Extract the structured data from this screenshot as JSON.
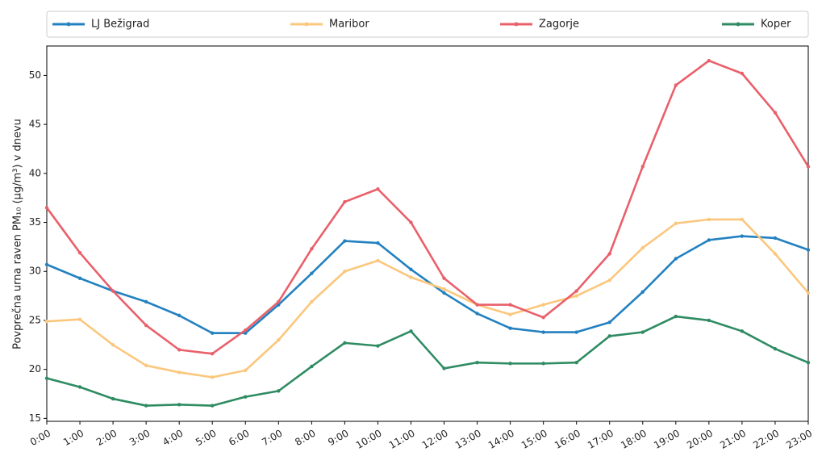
{
  "chart_data": {
    "type": "line",
    "y_label": "Povprečna urna raven PM₁₀ (µg/m³) v dnevu",
    "categories": [
      "0:00",
      "1:00",
      "2:00",
      "3:00",
      "4:00",
      "5:00",
      "6:00",
      "7:00",
      "8:00",
      "9:00",
      "10:00",
      "11:00",
      "12:00",
      "13:00",
      "14:00",
      "15:00",
      "16:00",
      "17:00",
      "18:00",
      "19:00",
      "20:00",
      "21:00",
      "22:00",
      "23:00"
    ],
    "series": [
      {
        "name": "LJ Bežigrad",
        "color": "#2381c0",
        "values": [
          30.7,
          29.3,
          28.0,
          26.9,
          25.5,
          23.7,
          23.7,
          26.6,
          29.8,
          33.1,
          32.9,
          30.2,
          27.8,
          25.7,
          24.2,
          23.8,
          23.8,
          24.8,
          27.9,
          31.3,
          33.2,
          33.6,
          33.4,
          32.2
        ]
      },
      {
        "name": "Maribor",
        "color": "#fbc77c",
        "values": [
          24.9,
          25.1,
          22.5,
          20.4,
          19.7,
          19.2,
          19.9,
          23.0,
          26.9,
          30.0,
          31.1,
          29.4,
          28.2,
          26.6,
          25.6,
          26.6,
          27.5,
          29.1,
          32.4,
          34.9,
          35.3,
          35.3,
          31.8,
          27.8
        ]
      },
      {
        "name": "Zagorje",
        "color": "#e9606a",
        "values": [
          36.5,
          31.9,
          28.0,
          24.5,
          22.0,
          21.6,
          24.0,
          26.9,
          32.3,
          37.1,
          38.4,
          35.0,
          29.3,
          26.6,
          26.6,
          25.3,
          28.0,
          31.8,
          40.7,
          49.0,
          51.5,
          50.2,
          46.2,
          40.7
        ]
      },
      {
        "name": "Koper",
        "color": "#2e8b62",
        "values": [
          19.1,
          18.2,
          17.0,
          16.3,
          16.4,
          16.3,
          17.2,
          17.8,
          20.3,
          22.7,
          22.4,
          23.9,
          20.1,
          20.7,
          20.6,
          20.6,
          20.7,
          23.4,
          23.8,
          25.4,
          25.0,
          23.9,
          22.1,
          20.7
        ]
      }
    ],
    "ylim": [
      14.7,
      53
    ],
    "yticks": [
      15,
      20,
      25,
      30,
      35,
      40,
      45,
      50
    ],
    "grid": false,
    "legend": "top"
  }
}
